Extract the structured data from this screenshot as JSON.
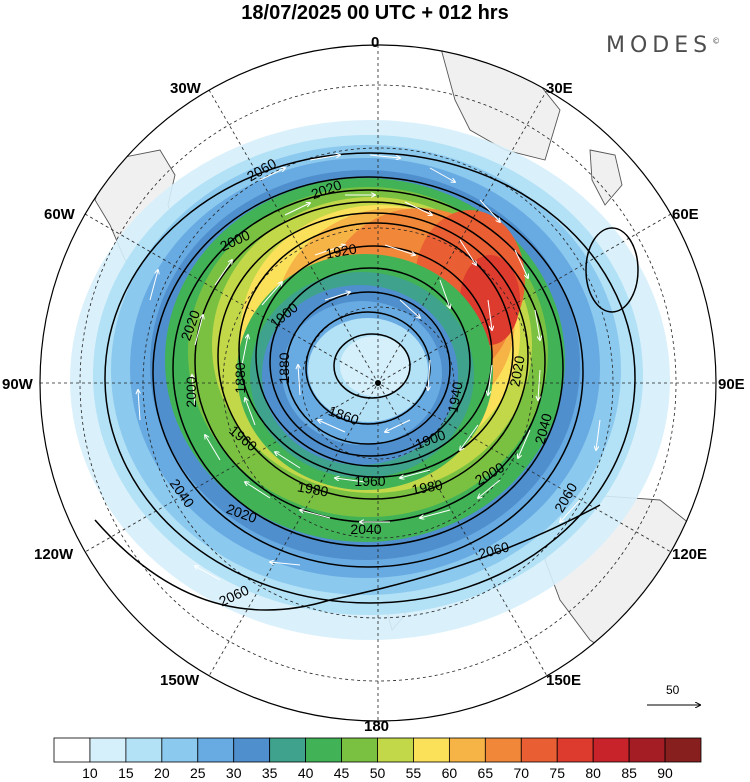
{
  "title": "18/07/2025  00 UTC  + 012 hrs",
  "brand": "MODES",
  "brand_mark": "©",
  "longitude_labels": [
    "0",
    "30E",
    "60E",
    "90E",
    "120E",
    "150E",
    "180",
    "150W",
    "120W",
    "90W",
    "60W",
    "30W"
  ],
  "contour_labels": [
    "2060",
    "2020",
    "1920",
    "2000",
    "1900",
    "1880",
    "2020",
    "1860",
    "1940",
    "2020",
    "2040",
    "1900",
    "1960",
    "1960",
    "1980",
    "2000",
    "1980",
    "2040",
    "2060",
    "2060",
    "2060",
    "2040",
    "2020",
    "1880",
    "2000"
  ],
  "vector_reference": {
    "value": "50"
  },
  "colorbar": {
    "ticks": [
      "10",
      "15",
      "20",
      "25",
      "30",
      "35",
      "40",
      "45",
      "50",
      "55",
      "60",
      "65",
      "70",
      "75",
      "80",
      "85",
      "90"
    ],
    "colors": [
      "#ffffff",
      "#d6f0fb",
      "#b3e1f6",
      "#8cc9ef",
      "#68abe2",
      "#4f8fcd",
      "#3fa28c",
      "#41b256",
      "#7ac142",
      "#c2d849",
      "#fbe05a",
      "#f7b446",
      "#f18839",
      "#e95f33",
      "#dc3b2e",
      "#c8232a",
      "#a51d24",
      "#881f1f"
    ]
  },
  "colors": {
    "land": "#f0f0f0",
    "coast": "#555555",
    "contour": "#000000",
    "vector": "#ffffff"
  }
}
